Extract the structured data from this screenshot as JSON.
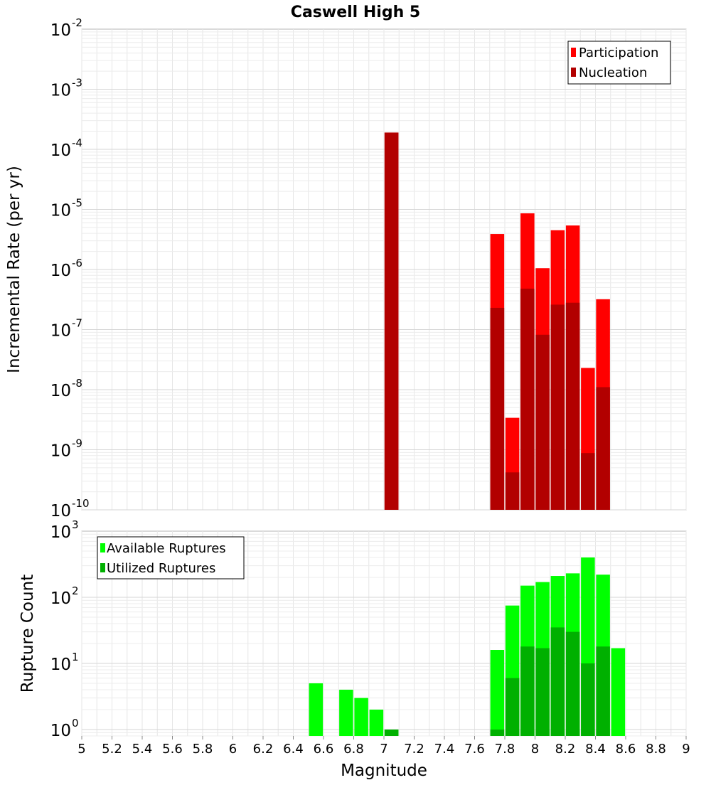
{
  "chart_data": [
    {
      "type": "bar",
      "title": "Caswell High 5",
      "ylabel": "Incremental Rate (per yr)",
      "yscale": "log",
      "ylim": [
        1e-10,
        0.01
      ],
      "xlim": [
        5,
        9
      ],
      "ytick_exponents": [
        "-10",
        "-9",
        "-8",
        "-7",
        "-6",
        "-5",
        "-4",
        "-3",
        "-2"
      ],
      "ytick_base": "10",
      "legend_position": "top-right",
      "colors": {
        "participation": "#ff0000",
        "nucleation": "#b20000"
      },
      "series": [
        {
          "name": "Participation",
          "x": [
            7.05,
            7.75,
            7.85,
            7.95,
            8.05,
            8.15,
            8.25,
            8.35,
            8.45
          ],
          "values": [
            0.00019,
            3.9e-06,
            3.4e-09,
            8.6e-06,
            1.05e-06,
            4.5e-06,
            5.4e-06,
            2.3e-08,
            3.2e-07
          ]
        },
        {
          "name": "Nucleation",
          "x": [
            7.05,
            7.75,
            7.85,
            7.95,
            8.05,
            8.15,
            8.25,
            8.35,
            8.45
          ],
          "values": [
            0.00019,
            2.3e-07,
            4.2e-10,
            4.8e-07,
            8.2e-08,
            2.6e-07,
            2.8e-07,
            8.8e-10,
            1.1e-08
          ]
        }
      ]
    },
    {
      "type": "bar",
      "xlabel": "Magnitude",
      "ylabel": "Rupture Count",
      "yscale": "log",
      "ylim": [
        0.8,
        1000
      ],
      "xlim": [
        5,
        9
      ],
      "ytick_exponents": [
        "0",
        "1",
        "2",
        "3"
      ],
      "ytick_base": "10",
      "xticks": [
        "5",
        "5.2",
        "5.4",
        "5.6",
        "5.8",
        "6",
        "6.2",
        "6.4",
        "6.6",
        "6.8",
        "7",
        "7.2",
        "7.4",
        "7.6",
        "7.8",
        "8",
        "8.2",
        "8.4",
        "8.6",
        "8.8",
        "9"
      ],
      "legend_position": "top-left",
      "colors": {
        "available": "#00ff00",
        "utilized": "#00b000"
      },
      "series": [
        {
          "name": "Available Ruptures",
          "x": [
            6.55,
            6.75,
            6.85,
            6.95,
            7.05,
            7.75,
            7.85,
            7.95,
            8.05,
            8.15,
            8.25,
            8.35,
            8.45,
            8.55
          ],
          "values": [
            5,
            4,
            3,
            2,
            1,
            16,
            75,
            150,
            170,
            210,
            230,
            400,
            220,
            17
          ]
        },
        {
          "name": "Utilized Ruptures",
          "x": [
            7.05,
            7.75,
            7.85,
            7.95,
            8.05,
            8.15,
            8.25,
            8.35,
            8.45
          ],
          "values": [
            1,
            1,
            6,
            18,
            17,
            35,
            30,
            10,
            18
          ]
        }
      ]
    }
  ]
}
